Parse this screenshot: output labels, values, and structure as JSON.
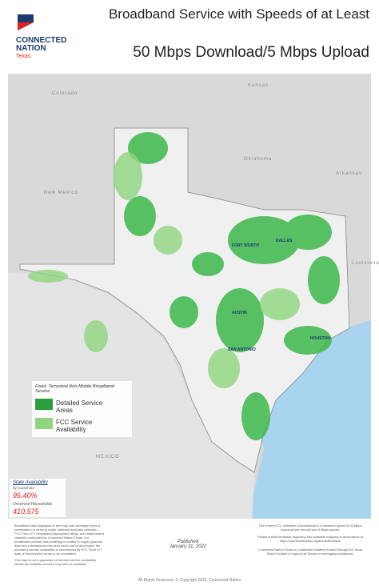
{
  "header": {
    "logo_name": "CONNECTED NATION",
    "logo_state": "Texas",
    "title_line1": "Broadband Service with Speeds of at Least",
    "title_line2": "50 Mbps Download/5 Mbps Upload"
  },
  "map": {
    "neighbors": [
      "Colorado",
      "Kansas",
      "Oklahoma",
      "Arkansas",
      "New Mexico",
      "Louisiana",
      "MEXICO"
    ],
    "cities": [
      "DALLAS",
      "FORT WORTH",
      "AUSTIN",
      "SAN ANTONIO",
      "HOUSTON"
    ]
  },
  "legend": {
    "title": "Fixed, Terrestrial Non-Mobile Broadband Service",
    "items": [
      "Detailed Service Areas",
      "FCC Service Availability"
    ]
  },
  "stats": {
    "label": "State Availability",
    "sublabel": "by household",
    "availability": "95.40%",
    "unserved_label": "Unserved Households",
    "unserved": "410,575"
  },
  "notes": {
    "left": [
      "Broadband data displayed in this map was developed from a combination of direct provider outreach and data collection, FCC Form 477 broadband deployment filings, and independent research conducted by Connected Nation Texas. If a broadband provider was unwilling or unable to supply granular data and a detailed service area could not be developed, the provider's service availability is represented by FCC Form 477 data, a format which tends to be overstated.",
      "This map is not a guarantee of internet service availability. Mobile and satellite services may also be available."
    ],
    "published_label": "Published",
    "published_date": "January 31, 2022",
    "right": [
      "The current FCC definition of broadband is a minimum speed of 25 Mbps download per second and 3 Mbps upload.",
      "Please submit feedback regarding any available mapping in accordance at https://connectednation.org/texas/feedback",
      "Connected Nation Texas is a statewide initiative funded through the Texas Rural Funders to support all Texans in leveraging broadband."
    ]
  },
  "footer": "All Rights Reserved. © Copyright 2022, Connected Nation"
}
